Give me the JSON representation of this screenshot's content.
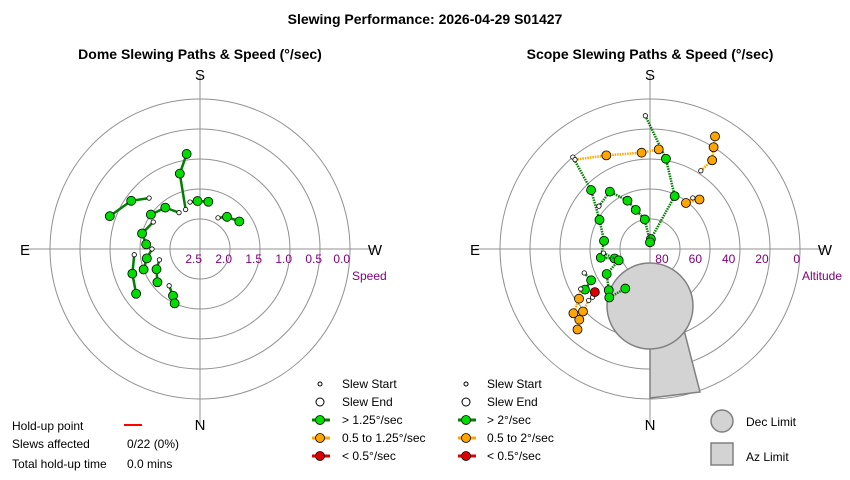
{
  "title": "Slewing Performance: 2026-04-29 S01427",
  "dome": {
    "title": "Dome Slewing Paths & Speed (°/sec)",
    "compass": {
      "top": "S",
      "bottom": "N",
      "left": "E",
      "right": "W"
    },
    "ticks": [
      "2.5",
      "2.0",
      "1.5",
      "1.0",
      "0.5",
      "0.0"
    ],
    "axis_label": "Speed",
    "legend": [
      "Slew Start",
      "Slew End",
      "> 1.25°/sec",
      "0.5 to 1.25°/sec",
      "< 0.5°/sec"
    ]
  },
  "scope": {
    "title": "Scope Slewing Paths & Speed (°/sec)",
    "compass": {
      "top": "S",
      "bottom": "N",
      "left": "E",
      "right": "W"
    },
    "ticks": [
      "80",
      "60",
      "40",
      "20",
      "0"
    ],
    "axis_label": "Altitude",
    "legend": [
      "Slew Start",
      "Slew End",
      "> 2°/sec",
      "0.5 to 2°/sec",
      "< 0.5°/sec"
    ],
    "limits_legend": [
      "Dec Limit",
      "Az Limit"
    ]
  },
  "holdup": {
    "point_label": "Hold-up point",
    "slews_label": "Slews affected",
    "slews_value": "0/22 (0%)",
    "time_label": "Total hold-up time",
    "time_value": "0.0 mins"
  },
  "colors": {
    "fast": "#00dd00",
    "mid": "#ffa500",
    "slow": "#dd0000",
    "path_fast": "#008000",
    "holdup": "#ff0000",
    "limit_fill": "#d3d3d3"
  },
  "chart_data": [
    {
      "type": "polar-scatter",
      "title": "Dome Slewing Paths & Speed (°/sec)",
      "radial_axis": {
        "label": "Speed",
        "ticks": [
          2.5,
          2.0,
          1.5,
          1.0,
          0.5,
          0.0
        ],
        "range": [
          2.5,
          0.0
        ]
      },
      "slews": [
        {
          "speed_class": "fast",
          "points": [
            [
              -12,
              1.7
            ],
            [
              -3,
              1.7
            ],
            [
              10,
              1.7
            ]
          ]
        },
        {
          "speed_class": "fast",
          "points": [
            [
              -20,
              1.8
            ],
            [
              -15,
              1.2
            ],
            [
              -8,
              0.9
            ]
          ]
        },
        {
          "speed_class": "fast",
          "points": [
            [
              30,
              1.9
            ],
            [
              40,
              1.8
            ],
            [
              55,
              1.7
            ]
          ]
        },
        {
          "speed_class": "fast",
          "points": [
            [
              -30,
              1.8
            ],
            [
              -40,
              1.6
            ],
            [
              -55,
              1.5
            ]
          ]
        },
        {
          "speed_class": "fast",
          "points": [
            [
              -60,
              1.6
            ],
            [
              -75,
              1.5
            ],
            [
              -85,
              1.6
            ]
          ]
        },
        {
          "speed_class": "fast",
          "points": [
            [
              -90,
              1.7
            ],
            [
              -100,
              1.6
            ],
            [
              -110,
              1.5
            ]
          ]
        },
        {
          "speed_class": "fast",
          "points": [
            [
              -105,
              1.8
            ],
            [
              -115,
              1.7
            ],
            [
              -128,
              1.6
            ]
          ]
        },
        {
          "speed_class": "fast",
          "points": [
            [
              -95,
              1.4
            ],
            [
              -110,
              1.3
            ],
            [
              -125,
              1.2
            ]
          ]
        },
        {
          "speed_class": "fast",
          "points": [
            [
              -45,
              1.3
            ],
            [
              -55,
              1.1
            ],
            [
              -70,
              0.9
            ]
          ]
        },
        {
          "speed_class": "fast",
          "points": [
            [
              -140,
              1.7
            ],
            [
              -150,
              1.6
            ],
            [
              -155,
              1.5
            ]
          ]
        }
      ]
    },
    {
      "type": "polar-scatter",
      "title": "Scope Slewing Paths & Speed (°/sec)",
      "radial_axis": {
        "label": "Altitude",
        "ticks": [
          80,
          60,
          40,
          20,
          0
        ],
        "range": [
          90,
          0
        ]
      },
      "slews": [
        {
          "speed_class": "fast",
          "points": [
            [
              -2,
              10
            ],
            [
              10,
              35
            ],
            [
              25,
              55
            ],
            [
              5,
              84
            ]
          ]
        },
        {
          "speed_class": "fast",
          "points": [
            [
              -40,
              18
            ],
            [
              -45,
              40
            ],
            [
              -60,
              55
            ],
            [
              -80,
              62
            ],
            [
              -100,
              60
            ],
            [
              -105,
              68
            ]
          ]
        },
        {
          "speed_class": "fast",
          "points": [
            [
              -95,
              62
            ],
            [
              -110,
              70
            ],
            [
              -120,
              60
            ],
            [
              -135,
              55
            ],
            [
              -140,
              52
            ],
            [
              -148,
              62
            ]
          ]
        },
        {
          "speed_class": "fast",
          "points": [
            [
              -110,
              48
            ],
            [
              -118,
              50
            ],
            [
              -122,
              44
            ]
          ]
        },
        {
          "speed_class": "fast",
          "points": [
            [
              -50,
              50
            ],
            [
              -35,
              48
            ],
            [
              -25,
              58
            ],
            [
              -20,
              65
            ],
            [
              -10,
              72
            ],
            [
              0,
              86
            ]
          ]
        },
        {
          "speed_class": "mid",
          "points": [
            [
              -40,
              20
            ],
            [
              -25,
              28
            ],
            [
              -5,
              32
            ],
            [
              5,
              30
            ]
          ]
        },
        {
          "speed_class": "mid",
          "points": [
            [
              33,
              34
            ],
            [
              35,
              25
            ],
            [
              32,
              18
            ],
            [
              30,
              12
            ]
          ]
        },
        {
          "speed_class": "mid",
          "points": [
            [
              40,
              50
            ],
            [
              38,
              55
            ],
            [
              45,
              48
            ]
          ]
        },
        {
          "speed_class": "mid",
          "points": [
            [
              -130,
              42
            ],
            [
              -133,
              35
            ],
            [
              -135,
              30
            ],
            [
              -138,
              25
            ]
          ]
        },
        {
          "speed_class": "mid",
          "points": [
            [
              -120,
              42
            ],
            [
              -125,
              38
            ],
            [
              -130,
              30
            ]
          ]
        },
        {
          "speed_class": "slow",
          "points": [
            [
              -130,
              45
            ],
            [
              -128,
              48
            ]
          ]
        }
      ],
      "limits": [
        "Dec Limit",
        "Az Limit"
      ]
    }
  ]
}
